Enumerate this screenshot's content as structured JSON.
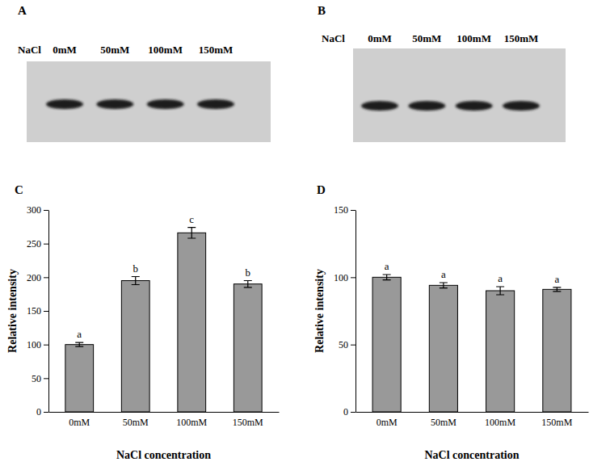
{
  "chart_data": [
    {
      "type": "bar",
      "title": "C",
      "x_label": "NaCl concentration",
      "y_label": "Relative intensity",
      "categories": [
        "0mM",
        "50mM",
        "100mM",
        "150mM"
      ],
      "values": [
        100,
        195,
        266,
        190
      ],
      "errors": [
        3,
        6,
        8,
        5
      ],
      "annotations": [
        "a",
        "b",
        "c",
        "b"
      ],
      "color": "#999999",
      "ylim": [
        0,
        300
      ],
      "yticks": [
        0,
        50,
        100,
        150,
        200,
        250,
        300
      ]
    },
    {
      "type": "bar",
      "title": "D",
      "x_label": "NaCl concentration",
      "y_label": "Relative intensity",
      "categories": [
        "0mM",
        "50mM",
        "100mM",
        "150mM"
      ],
      "values": [
        100,
        94,
        90,
        91
      ],
      "errors": [
        2,
        2,
        3,
        1.5
      ],
      "annotations": [
        "a",
        "a",
        "a",
        "a"
      ],
      "color": "#999999",
      "ylim": [
        0,
        150
      ],
      "yticks": [
        0,
        50,
        100,
        150
      ]
    }
  ],
  "blots": [
    {
      "label": "A",
      "row_label": "NaCl",
      "lanes": [
        "0mM",
        "50mM",
        "100mM",
        "150mM"
      ]
    },
    {
      "label": "B",
      "row_label": "NaCl",
      "lanes": [
        "0mM",
        "50mM",
        "100mM",
        "150mM"
      ]
    }
  ]
}
